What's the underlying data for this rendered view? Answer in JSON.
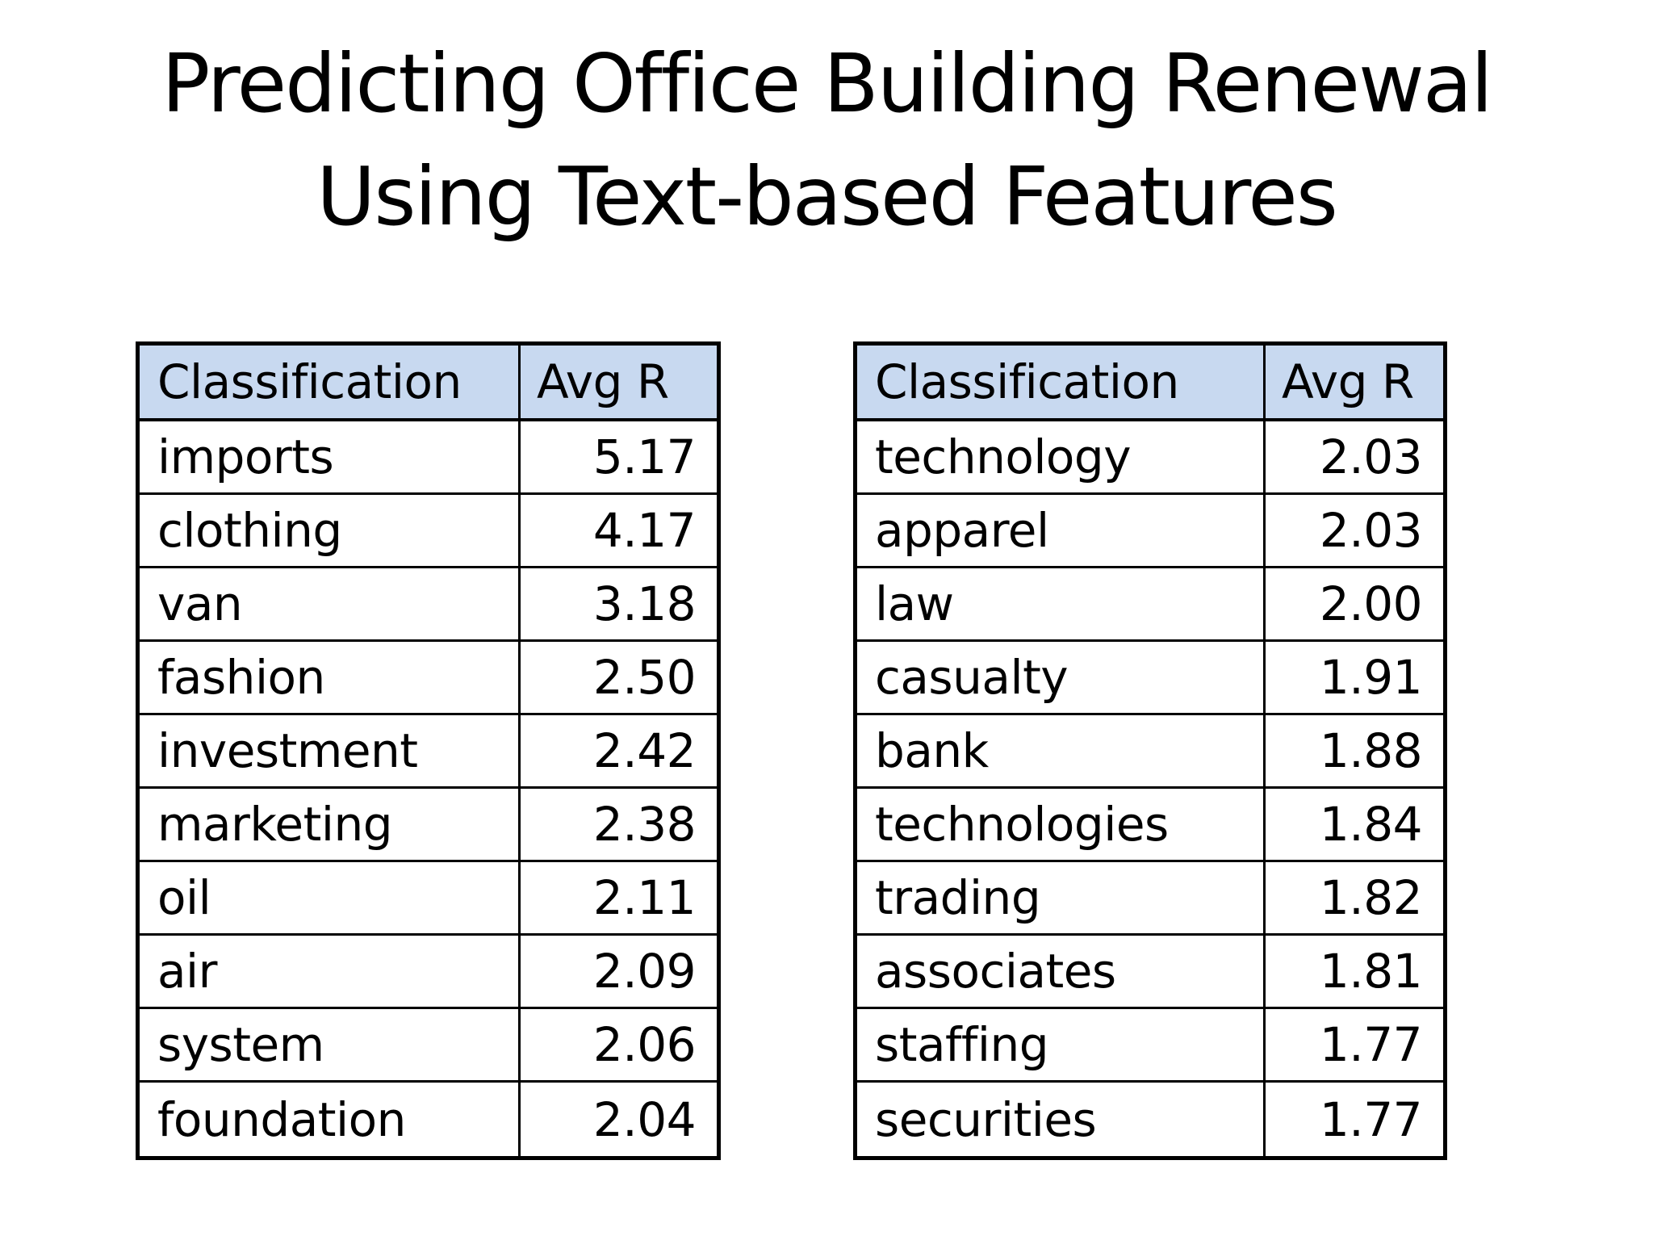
{
  "slide": {
    "title_line1": "Predicting Office Building Renewal",
    "title_line2": "Using Text-based Features"
  },
  "colors": {
    "background": "#FFFFFF",
    "header_fill": "#C8D9F0",
    "border": "#000000",
    "text": "#000000"
  },
  "tables": [
    {
      "header": {
        "classification": "Classification",
        "avg_r": "Avg R"
      },
      "rows": [
        {
          "classification": "imports",
          "avg_r": "5.17"
        },
        {
          "classification": "clothing",
          "avg_r": "4.17"
        },
        {
          "classification": "van",
          "avg_r": "3.18"
        },
        {
          "classification": "fashion",
          "avg_r": "2.50"
        },
        {
          "classification": "investment",
          "avg_r": "2.42"
        },
        {
          "classification": "marketing",
          "avg_r": "2.38"
        },
        {
          "classification": "oil",
          "avg_r": "2.11"
        },
        {
          "classification": "air",
          "avg_r": "2.09"
        },
        {
          "classification": "system",
          "avg_r": "2.06"
        },
        {
          "classification": "foundation",
          "avg_r": "2.04"
        }
      ]
    },
    {
      "header": {
        "classification": "Classification",
        "avg_r": "Avg R"
      },
      "rows": [
        {
          "classification": "technology",
          "avg_r": "2.03"
        },
        {
          "classification": "apparel",
          "avg_r": "2.03"
        },
        {
          "classification": "law",
          "avg_r": "2.00"
        },
        {
          "classification": "casualty",
          "avg_r": "1.91"
        },
        {
          "classification": "bank",
          "avg_r": "1.88"
        },
        {
          "classification": "technologies",
          "avg_r": "1.84"
        },
        {
          "classification": "trading",
          "avg_r": "1.82"
        },
        {
          "classification": "associates",
          "avg_r": "1.81"
        },
        {
          "classification": "staffing",
          "avg_r": "1.77"
        },
        {
          "classification": "securities",
          "avg_r": "1.77"
        }
      ]
    }
  ]
}
